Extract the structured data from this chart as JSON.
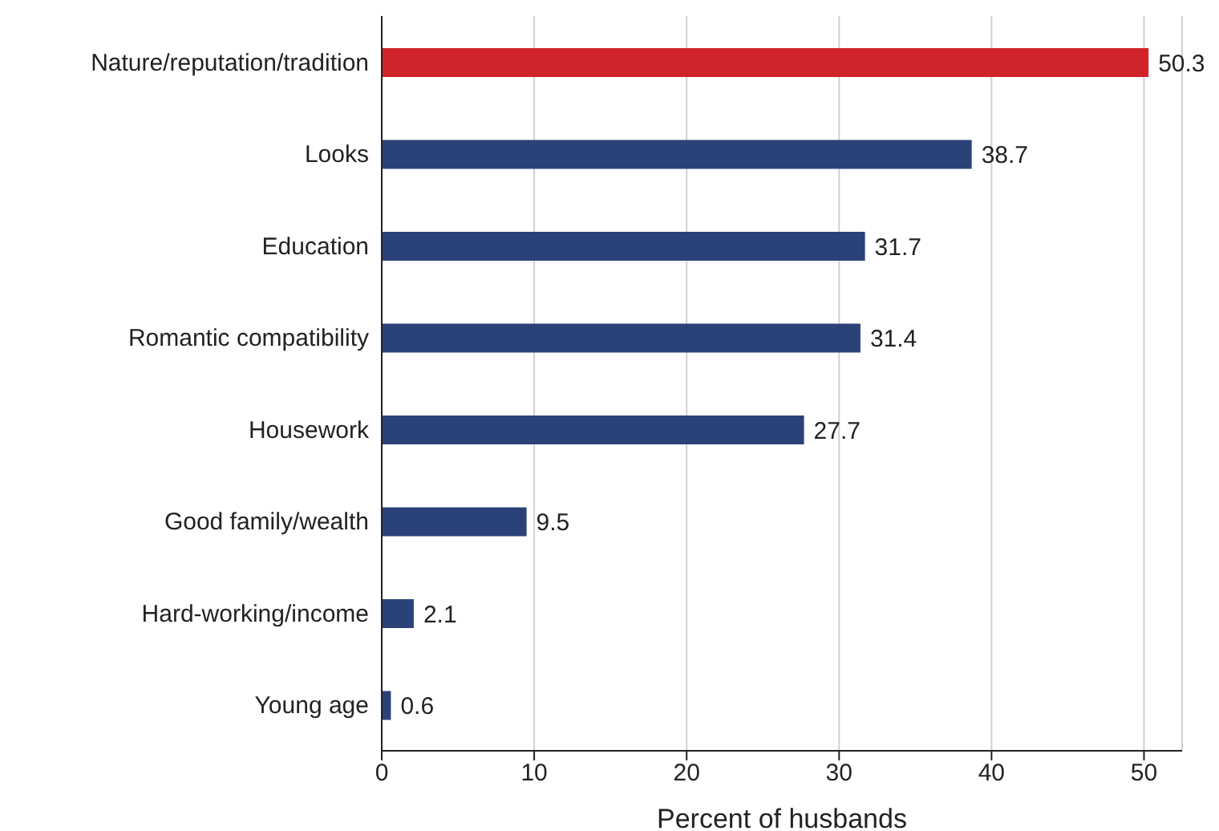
{
  "chart_data": {
    "type": "bar",
    "orientation": "horizontal",
    "xlabel": "Percent of husbands",
    "categories": [
      "Nature/reputation/tradition",
      "Looks",
      "Education",
      "Romantic compatibility",
      "Housework",
      "Good family/wealth",
      "Hard-working/income",
      "Young age"
    ],
    "values": [
      50.3,
      38.7,
      31.7,
      31.4,
      27.7,
      9.5,
      2.1,
      0.6
    ],
    "colors": [
      "#d0232a",
      "#2b4279",
      "#2b4279",
      "#2b4279",
      "#2b4279",
      "#2b4279",
      "#2b4279",
      "#2b4279"
    ],
    "xlim": [
      0,
      52.5
    ],
    "xticks": [
      0,
      10,
      20,
      30,
      40,
      50
    ],
    "grid": "x",
    "data_labels": true
  }
}
